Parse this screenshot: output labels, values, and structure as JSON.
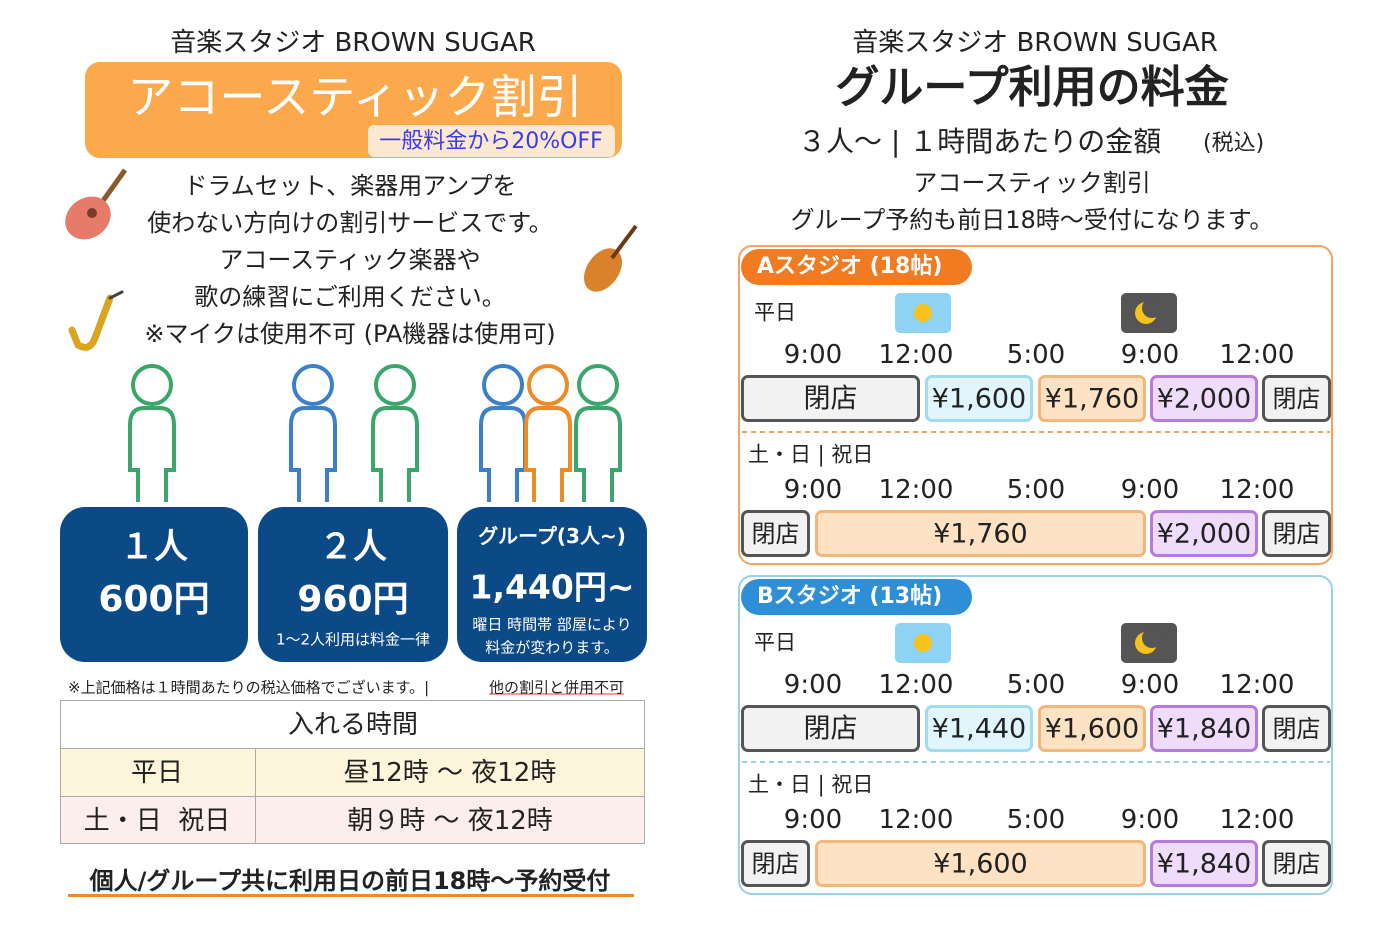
{
  "left": {
    "brand": "音楽スタジオ BROWN SUGAR",
    "title": "アコースティック割引",
    "discount": "一般料金から20%OFF",
    "description": [
      "ドラムセット、楽器用アンプを",
      "使わない方向けの割引サービスです。",
      "アコースティック楽器や",
      "歌の練習にご利用ください。",
      "※マイクは使用不可 (PA機器は使用可)"
    ],
    "plans": [
      {
        "label": "１人",
        "price": "600円"
      },
      {
        "label": "２人",
        "price": "960円",
        "note": [
          "1～2人利用は料金一律"
        ]
      },
      {
        "label": "グループ(3人~)",
        "price": "1,440円~",
        "note": [
          "曜日 時間帯 部屋により",
          "料金が変わります。"
        ]
      }
    ],
    "footnote": {
      "text": "※上記価格は１時間あたりの税込価格でございます。|",
      "emphasis": "他の割引と併用不可"
    },
    "table": {
      "header": "入れる時間",
      "rows": [
        [
          "平日",
          "昼12時 〜 夜12時"
        ],
        [
          "土・日  祝日",
          "朝９時 〜 夜12時"
        ]
      ]
    },
    "footer": "個人/グループ共に利用日の前日18時～予約受付"
  },
  "right": {
    "brand": "音楽スタジオ BROWN SUGAR",
    "title": "グループ利用の料金",
    "subtitle": "３人〜 | １時間あたりの金額",
    "subtitle_note": "(税込)",
    "lines": [
      "アコースティック割引",
      "グループ予約も前日18時〜受付になります。"
    ],
    "studios": [
      {
        "name": "Aスタジオ (18帖)",
        "schedules": [
          {
            "label": "平日",
            "times": [
              "9:00",
              "12:00",
              "5:00",
              "9:00",
              "12:00"
            ],
            "prices": [
              "閉店",
              "¥1,600",
              "¥1,760",
              "¥2,000",
              "閉店"
            ]
          },
          {
            "label": "土・日 | 祝日",
            "times": [
              "9:00",
              "12:00",
              "5:00",
              "9:00",
              "12:00"
            ],
            "prices": [
              "閉店",
              "¥1,760",
              "¥2,000",
              "閉店"
            ]
          }
        ]
      },
      {
        "name": "Bスタジオ (13帖)",
        "schedules": [
          {
            "label": "平日",
            "times": [
              "9:00",
              "12:00",
              "5:00",
              "9:00",
              "12:00"
            ],
            "prices": [
              "閉店",
              "¥1,440",
              "¥1,600",
              "¥1,840",
              "閉店"
            ]
          },
          {
            "label": "土・日 | 祝日",
            "times": [
              "9:00",
              "12:00",
              "5:00",
              "9:00",
              "12:00"
            ],
            "prices": [
              "閉店",
              "¥1,600",
              "¥1,840",
              "閉店"
            ]
          }
        ]
      }
    ]
  }
}
